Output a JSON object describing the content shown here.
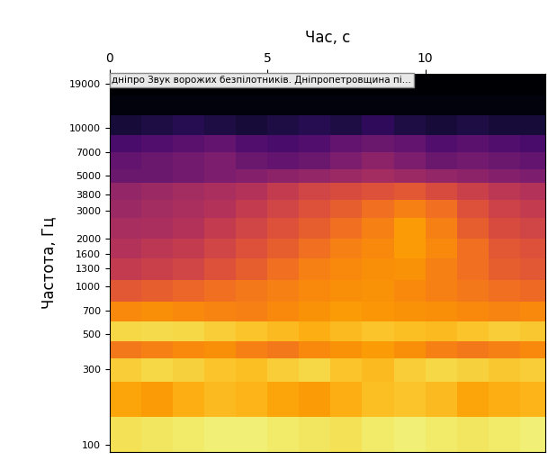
{
  "chart_data": {
    "type": "heatmap",
    "title": "дніпро Звук ворожих безпілотників. Дніпропетровщина пі...",
    "x_label": "Час, с",
    "y_label": "Частота, Гц",
    "xlim": [
      0,
      13.8
    ],
    "xticks": [
      0,
      5,
      10
    ],
    "ylim": [
      90,
      22000
    ],
    "yticks": [
      100,
      300,
      500,
      700,
      1000,
      1300,
      1600,
      2000,
      3000,
      3800,
      5000,
      7000,
      10000,
      19000
    ],
    "log": "y",
    "color": "inferno",
    "color_range": [
      0,
      100
    ],
    "x_edges": [
      0,
      1,
      2,
      3,
      4,
      5,
      6,
      7,
      8,
      9,
      10,
      11,
      12,
      13,
      13.8
    ],
    "y_edges": [
      90,
      150,
      250,
      350,
      450,
      600,
      800,
      1100,
      1500,
      2000,
      2700,
      3500,
      4500,
      5500,
      7000,
      9000,
      12000,
      16000,
      22000
    ],
    "cells": [
      [
        92,
        93,
        94,
        95,
        95,
        94,
        93,
        92,
        94,
        95,
        94,
        93,
        94,
        95
      ],
      [
        80,
        78,
        82,
        84,
        83,
        80,
        78,
        82,
        85,
        86,
        84,
        80,
        82,
        83
      ],
      [
        88,
        90,
        89,
        86,
        85,
        88,
        90,
        86,
        84,
        88,
        90,
        89,
        87,
        88
      ],
      [
        70,
        72,
        74,
        75,
        72,
        70,
        74,
        76,
        78,
        75,
        72,
        70,
        72,
        74
      ],
      [
        90,
        91,
        90,
        88,
        86,
        84,
        82,
        84,
        86,
        85,
        84,
        86,
        88,
        87
      ],
      [
        74,
        75,
        74,
        73,
        72,
        74,
        76,
        78,
        77,
        76,
        75,
        74,
        73,
        74
      ],
      [
        62,
        64,
        66,
        68,
        70,
        72,
        74,
        75,
        76,
        74,
        72,
        70,
        68,
        67
      ],
      [
        52,
        54,
        56,
        60,
        64,
        68,
        72,
        74,
        75,
        76,
        72,
        68,
        64,
        62
      ],
      [
        48,
        50,
        52,
        56,
        60,
        64,
        68,
        72,
        74,
        78,
        74,
        68,
        62,
        60
      ],
      [
        45,
        46,
        48,
        52,
        56,
        60,
        64,
        68,
        72,
        78,
        72,
        64,
        58,
        56
      ],
      [
        42,
        44,
        46,
        48,
        52,
        56,
        60,
        64,
        68,
        72,
        68,
        60,
        55,
        52
      ],
      [
        40,
        42,
        44,
        46,
        48,
        52,
        56,
        58,
        60,
        62,
        58,
        54,
        50,
        48
      ],
      [
        30,
        30,
        32,
        34,
        36,
        38,
        40,
        42,
        44,
        42,
        40,
        38,
        36,
        34
      ],
      [
        28,
        30,
        32,
        34,
        30,
        28,
        30,
        34,
        38,
        34,
        30,
        32,
        30,
        28
      ],
      [
        22,
        24,
        26,
        28,
        24,
        22,
        24,
        28,
        30,
        28,
        24,
        26,
        24,
        22
      ],
      [
        10,
        12,
        14,
        12,
        10,
        12,
        14,
        12,
        16,
        12,
        10,
        12,
        10,
        10
      ],
      [
        2,
        2,
        2,
        2,
        2,
        2,
        2,
        2,
        2,
        2,
        2,
        2,
        2,
        2
      ],
      [
        0,
        0,
        0,
        0,
        0,
        0,
        0,
        0,
        0,
        0,
        0,
        0,
        0,
        0
      ]
    ]
  }
}
